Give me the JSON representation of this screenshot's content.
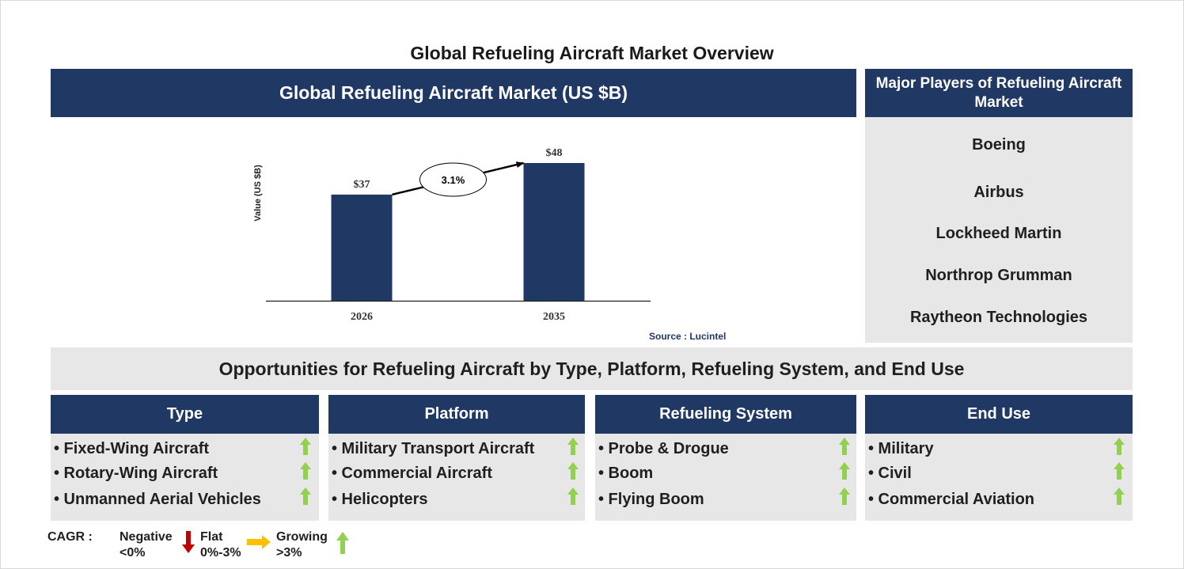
{
  "page_title": "Global Refueling Aircraft Market Overview",
  "chart_header": "Global Refueling Aircraft Market (US $B)",
  "chart_data": {
    "type": "bar",
    "categories": [
      "2026",
      "2035"
    ],
    "values": [
      37,
      48
    ],
    "data_labels": [
      "$37",
      "$48"
    ],
    "ylabel": "Value (US $B)",
    "xlabel": "",
    "ylim": [
      0,
      60
    ],
    "bar_color": "#203864",
    "annotation": {
      "label": "3.1%",
      "type": "arrow",
      "from": "2026",
      "to": "2035"
    },
    "grid": false
  },
  "source": "Source : Lucintel",
  "players": {
    "header": "Major Players of Refueling Aircraft Market",
    "items": [
      "Boeing",
      "Airbus",
      "Lockheed Martin",
      "Northrop Grumman",
      "Raytheon Technologies"
    ]
  },
  "opportunities_title": "Opportunities for Refueling Aircraft by Type, Platform, Refueling System, and End Use",
  "categories": [
    {
      "title": "Type",
      "items": [
        "• Fixed-Wing Aircraft",
        "• Rotary-Wing Aircraft",
        "• Unmanned Aerial Vehicles"
      ],
      "trends": [
        "growing",
        "growing",
        "growing"
      ]
    },
    {
      "title": "Platform",
      "items": [
        "• Military Transport Aircraft",
        "• Commercial Aircraft",
        "• Helicopters"
      ],
      "trends": [
        "growing",
        "growing",
        "growing"
      ]
    },
    {
      "title": "Refueling System",
      "items": [
        "• Probe & Drogue",
        "• Boom",
        "• Flying Boom"
      ],
      "trends": [
        "growing",
        "growing",
        "growing"
      ]
    },
    {
      "title": "End Use",
      "items": [
        "• Military",
        "• Civil",
        "• Commercial Aviation"
      ],
      "trends": [
        "growing",
        "growing",
        "growing"
      ]
    }
  ],
  "legend": {
    "label": "CAGR :",
    "negative": {
      "name": "Negative",
      "range": "<0%",
      "icon": "red-down-arrow-icon",
      "color": "#c00000"
    },
    "flat": {
      "name": "Flat",
      "range": "0%-3%",
      "icon": "yellow-right-arrow-icon",
      "color": "#ffc000"
    },
    "growing": {
      "name": "Growing",
      "range": ">3%",
      "icon": "green-up-arrow-icon",
      "color": "#92d050"
    }
  }
}
